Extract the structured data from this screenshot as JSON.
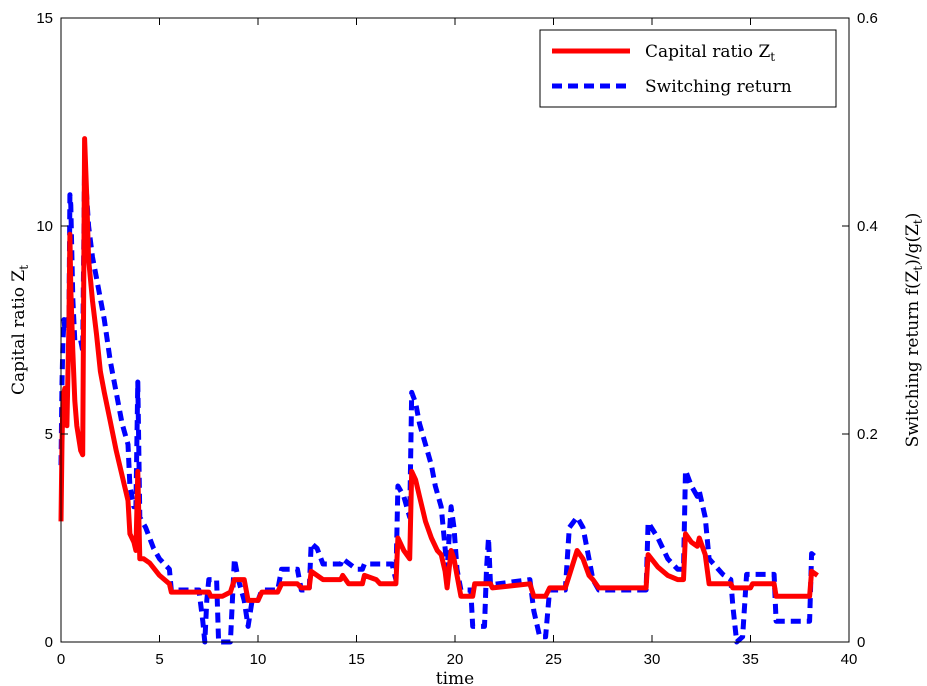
{
  "chart_data": {
    "type": "line",
    "xlabel": "time",
    "ylabel_left": "Capital ratio Z",
    "ylabel_left_sub": "t",
    "ylabel_right": "Switching return f(Z",
    "ylabel_right_mid": ")/g(Z",
    "ylabel_right_end": ")",
    "ylabel_right_sub": "t",
    "xlim": [
      0,
      40
    ],
    "ylim_left": [
      0,
      15
    ],
    "ylim_right": [
      0,
      0.6
    ],
    "x_ticks": [
      "0",
      "5",
      "10",
      "15",
      "20",
      "25",
      "30",
      "35",
      "40"
    ],
    "y_left_ticks": [
      "0",
      "5",
      "10",
      "15"
    ],
    "y_right_ticks": [
      "0",
      "0.2",
      "0.4",
      "0.6"
    ],
    "grid": false,
    "legend_position": "top-right",
    "series": [
      {
        "name": "Capital ratio Z",
        "name_sub": "t",
        "axis": "left",
        "color": "#ff0000",
        "style": "solid",
        "points": [
          [
            0,
            2.9
          ],
          [
            0.05,
            4.8
          ],
          [
            0.1,
            5.9
          ],
          [
            0.2,
            6.1
          ],
          [
            0.3,
            5.2
          ],
          [
            0.4,
            7.6
          ],
          [
            0.45,
            9.8
          ],
          [
            0.5,
            8.5
          ],
          [
            0.6,
            7.0
          ],
          [
            0.7,
            5.8
          ],
          [
            0.8,
            5.2
          ],
          [
            1.0,
            4.6
          ],
          [
            1.1,
            4.5
          ],
          [
            1.2,
            12.1
          ],
          [
            1.3,
            10.8
          ],
          [
            1.4,
            9.2
          ],
          [
            1.6,
            8.2
          ],
          [
            1.8,
            7.4
          ],
          [
            2.0,
            6.5
          ],
          [
            2.2,
            6.0
          ],
          [
            2.5,
            5.3
          ],
          [
            2.8,
            4.6
          ],
          [
            3.1,
            4.0
          ],
          [
            3.4,
            3.4
          ],
          [
            3.5,
            2.6
          ],
          [
            3.7,
            2.4
          ],
          [
            3.8,
            2.2
          ],
          [
            3.9,
            4.1
          ],
          [
            4.0,
            2.0
          ],
          [
            4.2,
            2.0
          ],
          [
            4.5,
            1.9
          ],
          [
            5.0,
            1.6
          ],
          [
            5.5,
            1.4
          ],
          [
            5.6,
            1.2
          ],
          [
            7.5,
            1.2
          ],
          [
            7.6,
            1.1
          ],
          [
            8.0,
            1.1
          ],
          [
            8.2,
            1.1
          ],
          [
            8.6,
            1.2
          ],
          [
            8.8,
            1.5
          ],
          [
            9.3,
            1.5
          ],
          [
            9.5,
            1.0
          ],
          [
            10.0,
            1.0
          ],
          [
            10.2,
            1.2
          ],
          [
            11.0,
            1.2
          ],
          [
            11.2,
            1.4
          ],
          [
            12.0,
            1.4
          ],
          [
            12.2,
            1.3
          ],
          [
            12.6,
            1.3
          ],
          [
            12.7,
            1.7
          ],
          [
            13.3,
            1.5
          ],
          [
            14.2,
            1.5
          ],
          [
            14.3,
            1.6
          ],
          [
            14.6,
            1.4
          ],
          [
            15.3,
            1.4
          ],
          [
            15.4,
            1.6
          ],
          [
            16.0,
            1.5
          ],
          [
            16.2,
            1.4
          ],
          [
            16.6,
            1.4
          ],
          [
            17.0,
            1.4
          ],
          [
            17.1,
            2.5
          ],
          [
            17.4,
            2.2
          ],
          [
            17.7,
            2.0
          ],
          [
            17.8,
            4.1
          ],
          [
            18.0,
            3.9
          ],
          [
            18.2,
            3.5
          ],
          [
            18.5,
            2.9
          ],
          [
            18.8,
            2.5
          ],
          [
            19.1,
            2.2
          ],
          [
            19.3,
            2.1
          ],
          [
            19.5,
            1.7
          ],
          [
            19.6,
            1.3
          ],
          [
            19.8,
            2.2
          ],
          [
            19.95,
            2.0
          ],
          [
            20.1,
            1.6
          ],
          [
            20.3,
            1.1
          ],
          [
            20.9,
            1.1
          ],
          [
            21.0,
            1.4
          ],
          [
            21.8,
            1.4
          ],
          [
            21.9,
            1.3
          ],
          [
            23.8,
            1.4
          ],
          [
            24.0,
            1.1
          ],
          [
            24.6,
            1.1
          ],
          [
            24.8,
            1.3
          ],
          [
            25.6,
            1.3
          ],
          [
            25.8,
            1.6
          ],
          [
            26.2,
            2.2
          ],
          [
            26.5,
            2.0
          ],
          [
            26.8,
            1.6
          ],
          [
            27.0,
            1.5
          ],
          [
            27.3,
            1.3
          ],
          [
            29.7,
            1.3
          ],
          [
            29.8,
            2.1
          ],
          [
            30.3,
            1.8
          ],
          [
            30.8,
            1.6
          ],
          [
            31.3,
            1.5
          ],
          [
            31.6,
            1.5
          ],
          [
            31.7,
            2.6
          ],
          [
            32.0,
            2.4
          ],
          [
            32.3,
            2.3
          ],
          [
            32.4,
            2.5
          ],
          [
            32.7,
            2.1
          ],
          [
            32.9,
            1.4
          ],
          [
            34.0,
            1.4
          ],
          [
            34.1,
            1.3
          ],
          [
            35.0,
            1.3
          ],
          [
            35.1,
            1.4
          ],
          [
            36.2,
            1.4
          ],
          [
            36.3,
            1.1
          ],
          [
            38.0,
            1.1
          ],
          [
            38.1,
            1.7
          ],
          [
            38.4,
            1.6
          ]
        ]
      },
      {
        "name": "Switching return",
        "axis": "right",
        "color": "#0000ff",
        "style": "dashed",
        "points": [
          [
            0,
            0.17
          ],
          [
            0.05,
            0.25
          ],
          [
            0.1,
            0.29
          ],
          [
            0.15,
            0.31
          ],
          [
            0.2,
            0.3
          ],
          [
            0.3,
            0.31
          ],
          [
            0.4,
            0.3
          ],
          [
            0.45,
            0.43
          ],
          [
            0.5,
            0.42
          ],
          [
            0.6,
            0.33
          ],
          [
            0.7,
            0.29
          ],
          [
            1.0,
            0.29
          ],
          [
            1.1,
            0.28
          ],
          [
            1.2,
            0.46
          ],
          [
            1.3,
            0.43
          ],
          [
            1.4,
            0.4
          ],
          [
            1.6,
            0.37
          ],
          [
            1.8,
            0.35
          ],
          [
            2.0,
            0.33
          ],
          [
            2.2,
            0.31
          ],
          [
            2.5,
            0.27
          ],
          [
            2.8,
            0.24
          ],
          [
            3.1,
            0.21
          ],
          [
            3.4,
            0.19
          ],
          [
            3.5,
            0.15
          ],
          [
            3.7,
            0.13
          ],
          [
            3.8,
            0.13
          ],
          [
            3.9,
            0.25
          ],
          [
            4.0,
            0.12
          ],
          [
            4.3,
            0.11
          ],
          [
            4.7,
            0.09
          ],
          [
            5.0,
            0.08
          ],
          [
            5.5,
            0.07
          ],
          [
            5.6,
            0.05
          ],
          [
            7.0,
            0.05
          ],
          [
            7.2,
            0.02
          ],
          [
            7.3,
            0.0
          ],
          [
            7.4,
            0.04
          ],
          [
            7.5,
            0.06
          ],
          [
            7.9,
            0.06
          ],
          [
            8.0,
            0.0
          ],
          [
            8.6,
            0.0
          ],
          [
            8.8,
            0.08
          ],
          [
            9.0,
            0.06
          ],
          [
            9.3,
            0.04
          ],
          [
            9.5,
            0.015
          ],
          [
            9.7,
            0.04
          ],
          [
            10.0,
            0.04
          ],
          [
            10.2,
            0.05
          ],
          [
            11.0,
            0.05
          ],
          [
            11.2,
            0.07
          ],
          [
            12.0,
            0.07
          ],
          [
            12.2,
            0.05
          ],
          [
            12.6,
            0.05
          ],
          [
            12.7,
            0.095
          ],
          [
            13.0,
            0.09
          ],
          [
            13.3,
            0.075
          ],
          [
            14.2,
            0.075
          ],
          [
            14.3,
            0.08
          ],
          [
            15.0,
            0.07
          ],
          [
            15.3,
            0.07
          ],
          [
            15.4,
            0.075
          ],
          [
            16.6,
            0.075
          ],
          [
            16.8,
            0.075
          ],
          [
            17.0,
            0.06
          ],
          [
            17.1,
            0.15
          ],
          [
            17.4,
            0.14
          ],
          [
            17.7,
            0.12
          ],
          [
            17.8,
            0.24
          ],
          [
            18.0,
            0.23
          ],
          [
            18.2,
            0.21
          ],
          [
            18.5,
            0.19
          ],
          [
            18.8,
            0.17
          ],
          [
            19.0,
            0.15
          ],
          [
            19.3,
            0.13
          ],
          [
            19.6,
            0.07
          ],
          [
            19.8,
            0.13
          ],
          [
            19.95,
            0.11
          ],
          [
            20.1,
            0.07
          ],
          [
            20.3,
            0.05
          ],
          [
            20.8,
            0.05
          ],
          [
            20.9,
            0.015
          ],
          [
            21.5,
            0.015
          ],
          [
            21.6,
            0.07
          ],
          [
            21.7,
            0.1
          ],
          [
            21.8,
            0.055
          ],
          [
            23.8,
            0.06
          ],
          [
            24.0,
            0.03
          ],
          [
            24.3,
            0.005
          ],
          [
            24.6,
            0.005
          ],
          [
            24.8,
            0.05
          ],
          [
            25.6,
            0.05
          ],
          [
            25.8,
            0.11
          ],
          [
            26.2,
            0.12
          ],
          [
            26.5,
            0.11
          ],
          [
            26.8,
            0.08
          ],
          [
            27.0,
            0.06
          ],
          [
            27.3,
            0.05
          ],
          [
            29.7,
            0.05
          ],
          [
            29.8,
            0.115
          ],
          [
            30.3,
            0.1
          ],
          [
            30.8,
            0.08
          ],
          [
            31.3,
            0.07
          ],
          [
            31.6,
            0.07
          ],
          [
            31.7,
            0.165
          ],
          [
            32.0,
            0.15
          ],
          [
            32.3,
            0.14
          ],
          [
            32.4,
            0.145
          ],
          [
            32.7,
            0.12
          ],
          [
            32.9,
            0.08
          ],
          [
            33.6,
            0.065
          ],
          [
            34.0,
            0.06
          ],
          [
            34.1,
            0.035
          ],
          [
            34.3,
            0.0
          ],
          [
            34.6,
            0.005
          ],
          [
            34.8,
            0.065
          ],
          [
            36.2,
            0.065
          ],
          [
            36.3,
            0.02
          ],
          [
            38.0,
            0.02
          ],
          [
            38.1,
            0.085
          ],
          [
            38.4,
            0.08
          ]
        ]
      }
    ]
  }
}
